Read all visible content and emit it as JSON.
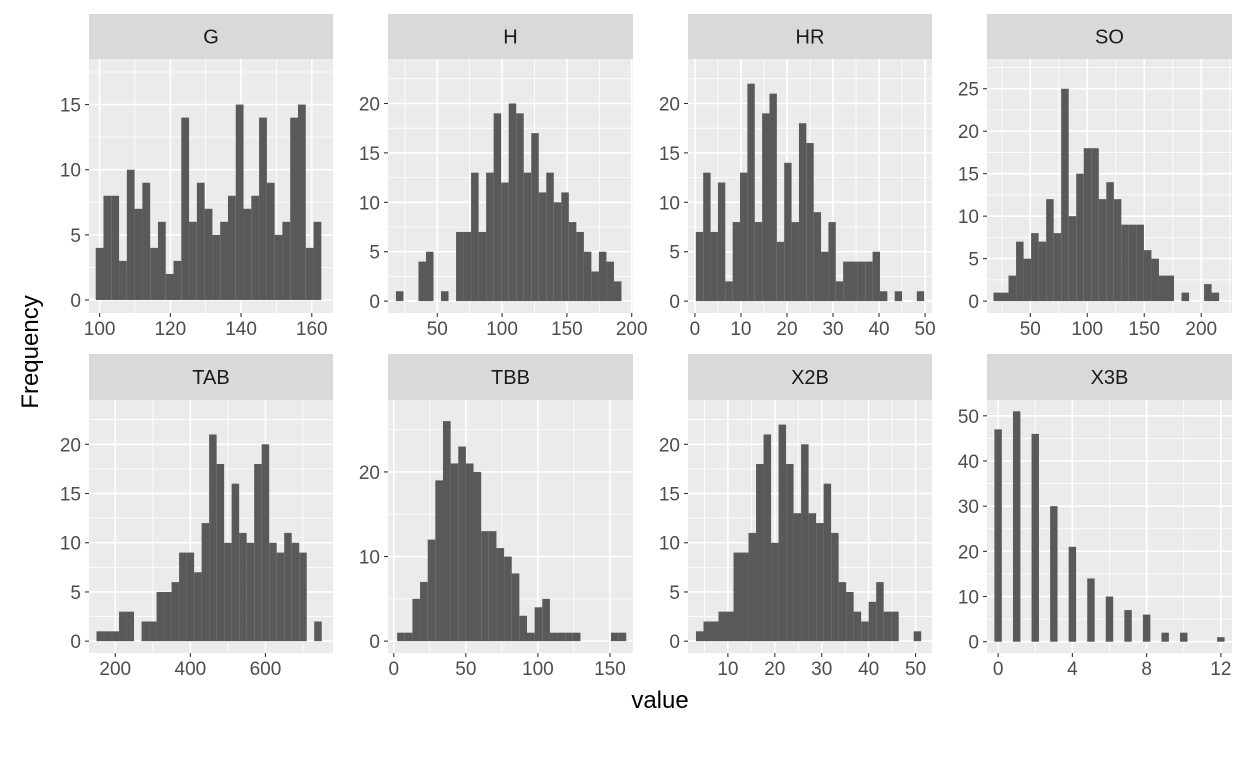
{
  "chart_data": [
    {
      "type": "bar",
      "panel": "G",
      "bin_width": 2.2,
      "x": [
        100,
        102.2,
        104.4,
        106.6,
        108.8,
        111,
        113.2,
        115.4,
        117.6,
        119.8,
        122,
        124.2,
        126.4,
        128.6,
        130.8,
        133,
        135.2,
        137.4,
        139.6,
        141.8,
        144,
        146.2,
        148.4,
        150.6,
        152.8,
        155,
        157.2,
        159.4,
        161.6
      ],
      "values": [
        4,
        8,
        8,
        3,
        10,
        7,
        9,
        4,
        6,
        2,
        3,
        14,
        6,
        9,
        7,
        5,
        6,
        8,
        15,
        7,
        8,
        14,
        9,
        5,
        6,
        14,
        15,
        4,
        6
      ],
      "xlim": [
        97,
        166
      ],
      "ylim": [
        -1,
        18.5
      ],
      "x_ticks": [
        100,
        120,
        140,
        160
      ],
      "x_tick_labels": [
        "100",
        "120",
        "140",
        "160"
      ],
      "y_ticks": [
        0,
        5,
        10,
        15
      ],
      "y_tick_labels": [
        "0",
        "5",
        "10",
        "15"
      ]
    },
    {
      "type": "bar",
      "panel": "H",
      "bin_width": 5.8,
      "x": [
        21,
        26.8,
        32.6,
        38.4,
        44.2,
        50,
        55.8,
        61.6,
        67.4,
        73.2,
        79,
        84.8,
        90.6,
        96.4,
        102.2,
        108,
        113.8,
        119.6,
        125.4,
        131.2,
        137,
        142.8,
        148.6,
        154.4,
        160.2,
        166,
        171.8,
        177.6,
        183.4,
        189.2
      ],
      "values": [
        1,
        0,
        0,
        4,
        5,
        0,
        1,
        0,
        7,
        7,
        13,
        7,
        13,
        19,
        12,
        20,
        19,
        13,
        17,
        11,
        13,
        10,
        11,
        8,
        7,
        5,
        3,
        5,
        4,
        2
      ],
      "xlim": [
        12,
        201
      ],
      "ylim": [
        -1.2,
        24.5
      ],
      "x_ticks": [
        50,
        100,
        150,
        200
      ],
      "x_tick_labels": [
        "50",
        "100",
        "150",
        "200"
      ],
      "y_ticks": [
        0,
        5,
        10,
        15,
        20
      ],
      "y_tick_labels": [
        "0",
        "5",
        "10",
        "15",
        "20"
      ]
    },
    {
      "type": "bar",
      "panel": "HR",
      "bin_width": 1.6,
      "x": [
        1,
        2.6,
        4.2,
        5.8,
        7.4,
        9,
        10.6,
        12.2,
        13.8,
        15.4,
        17,
        18.6,
        20.2,
        21.8,
        23.4,
        25,
        26.6,
        28.2,
        29.8,
        31.4,
        33,
        34.6,
        36.2,
        37.8,
        39.4,
        41,
        42.6,
        44.2,
        45.8,
        47.4,
        49
      ],
      "values": [
        7,
        13,
        7,
        12,
        2,
        8,
        13,
        22,
        8,
        19,
        21,
        6,
        14,
        8,
        18,
        16,
        9,
        5,
        8,
        2,
        4,
        4,
        4,
        4,
        5,
        1,
        0,
        1,
        0,
        0,
        1
      ],
      "xlim": [
        -1.5,
        51.5
      ],
      "ylim": [
        -1.2,
        24.5
      ],
      "x_ticks": [
        0,
        10,
        20,
        30,
        40,
        50
      ],
      "x_tick_labels": [
        "0",
        "10",
        "20",
        "30",
        "40",
        "50"
      ],
      "y_ticks": [
        0,
        5,
        10,
        15,
        20
      ],
      "y_tick_labels": [
        "0",
        "5",
        "10",
        "15",
        "20"
      ]
    },
    {
      "type": "bar",
      "panel": "SO",
      "bin_width": 6.6,
      "x": [
        21,
        27.6,
        34.2,
        40.8,
        47.4,
        54,
        60.6,
        67.2,
        73.8,
        80.4,
        87,
        93.6,
        100.2,
        106.8,
        113.4,
        120,
        126.6,
        133.2,
        139.8,
        146.4,
        153,
        159.6,
        166.2,
        172.8,
        179.4,
        186,
        192.6,
        199.2,
        205.8,
        212.4
      ],
      "values": [
        1,
        1,
        3,
        7,
        5,
        8,
        7,
        12,
        8,
        25,
        10,
        15,
        18,
        18,
        12,
        14,
        12,
        9,
        9,
        9,
        6,
        5,
        3,
        3,
        0,
        1,
        0,
        0,
        2,
        1
      ],
      "xlim": [
        12,
        227
      ],
      "ylim": [
        -1.4,
        28.5
      ],
      "x_ticks": [
        50,
        100,
        150,
        200
      ],
      "x_tick_labels": [
        "50",
        "100",
        "150",
        "200"
      ],
      "y_ticks": [
        0,
        5,
        10,
        15,
        20,
        25
      ],
      "y_tick_labels": [
        "0",
        "5",
        "10",
        "15",
        "20",
        "25"
      ]
    },
    {
      "type": "bar",
      "panel": "TAB",
      "bin_width": 20,
      "x": [
        160,
        180,
        200,
        220,
        240,
        260,
        280,
        300,
        320,
        340,
        360,
        380,
        400,
        420,
        440,
        460,
        480,
        500,
        520,
        540,
        560,
        580,
        600,
        620,
        640,
        660,
        680,
        700,
        720,
        740
      ],
      "values": [
        1,
        1,
        1,
        3,
        3,
        0,
        2,
        2,
        5,
        5,
        6,
        9,
        9,
        7,
        12,
        21,
        18,
        10,
        16,
        11,
        10,
        18,
        20,
        10,
        9,
        11,
        10,
        9,
        0,
        2
      ],
      "xlim": [
        130,
        780
      ],
      "ylim": [
        -1.2,
        24.5
      ],
      "x_ticks": [
        200,
        400,
        600
      ],
      "x_tick_labels": [
        "200",
        "400",
        "600"
      ],
      "y_ticks": [
        0,
        5,
        10,
        15,
        20
      ],
      "y_tick_labels": [
        "0",
        "5",
        "10",
        "15",
        "20"
      ]
    },
    {
      "type": "bar",
      "panel": "TBB",
      "bin_width": 5.3,
      "x": [
        5,
        10.3,
        15.6,
        20.9,
        26.2,
        31.5,
        36.8,
        42.1,
        47.4,
        52.7,
        58,
        63.3,
        68.6,
        73.9,
        79.2,
        84.5,
        89.8,
        95.1,
        100.4,
        105.7,
        111,
        116.3,
        121.6,
        126.9,
        132.2,
        137.5,
        142.8,
        148.1,
        153.4,
        158.7
      ],
      "values": [
        1,
        1,
        5,
        7,
        12,
        19,
        26,
        21,
        23,
        21,
        20,
        13,
        13,
        11,
        10,
        8,
        3,
        1,
        4,
        5,
        1,
        1,
        1,
        1,
        0,
        0,
        0,
        0,
        1,
        1
      ],
      "xlim": [
        -4,
        166
      ],
      "ylim": [
        -1.4,
        28.5
      ],
      "x_ticks": [
        0,
        50,
        100,
        150
      ],
      "x_tick_labels": [
        "0",
        "50",
        "100",
        "150"
      ],
      "y_ticks": [
        0,
        10,
        20
      ],
      "y_tick_labels": [
        "0",
        "10",
        "20"
      ]
    },
    {
      "type": "bar",
      "panel": "X2B",
      "bin_width": 1.6,
      "x": [
        4,
        5.6,
        7.2,
        8.8,
        10.4,
        12,
        13.6,
        15.2,
        16.8,
        18.4,
        20,
        21.6,
        23.2,
        24.8,
        26.4,
        28,
        29.6,
        31.2,
        32.8,
        34.4,
        36,
        37.6,
        39.2,
        40.8,
        42.4,
        44,
        45.6,
        47.2,
        48.8,
        50.4
      ],
      "values": [
        1,
        2,
        2,
        3,
        3,
        9,
        9,
        11,
        18,
        21,
        10,
        22,
        18,
        13,
        20,
        13,
        12,
        16,
        11,
        6,
        5,
        3,
        2,
        4,
        6,
        3,
        3,
        0,
        0,
        1
      ],
      "xlim": [
        1.5,
        53.5
      ],
      "ylim": [
        -1.2,
        24.5
      ],
      "x_ticks": [
        10,
        20,
        30,
        40,
        50
      ],
      "x_tick_labels": [
        "10",
        "20",
        "30",
        "40",
        "50"
      ],
      "y_ticks": [
        0,
        5,
        10,
        15,
        20
      ],
      "y_tick_labels": [
        "0",
        "5",
        "10",
        "15",
        "20"
      ]
    },
    {
      "type": "bar",
      "panel": "X3B",
      "bin_width": 0.4,
      "x": [
        0,
        1,
        2,
        3,
        4,
        5,
        6,
        7,
        8,
        9,
        10,
        12
      ],
      "values": [
        47,
        51,
        46,
        30,
        21,
        14,
        10,
        7,
        6,
        2,
        2,
        1
      ],
      "xlim": [
        -0.6,
        12.6
      ],
      "ylim": [
        -2.5,
        53.5
      ],
      "x_ticks": [
        0,
        4,
        8,
        12
      ],
      "x_tick_labels": [
        "0",
        "4",
        "8",
        "12"
      ],
      "y_ticks": [
        0,
        10,
        20,
        30,
        40,
        50
      ],
      "y_tick_labels": [
        "0",
        "10",
        "20",
        "30",
        "40",
        "50"
      ]
    }
  ],
  "axes": {
    "xlabel": "value",
    "ylabel": "Frequency"
  },
  "colors": {
    "bar": "#595959",
    "panel_background": "#ebebeb",
    "strip_background": "#d9d9d9",
    "grid": "#ffffff",
    "tick_text": "#4d4d4d"
  }
}
